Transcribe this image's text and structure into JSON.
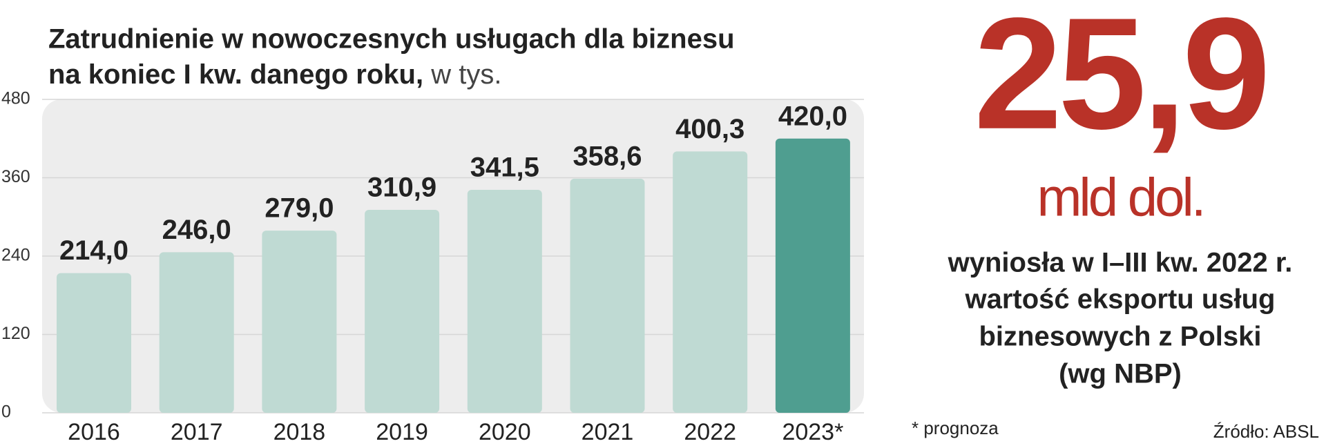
{
  "chart_data": {
    "type": "bar",
    "title": [
      "Zatrudnienie w nowoczesnych usługach dla biznesu",
      "na koniec I kw. danego roku,"
    ],
    "unit": "w tys.",
    "categories": [
      "2016",
      "2017",
      "2018",
      "2019",
      "2020",
      "2021",
      "2022",
      "2023*"
    ],
    "values": [
      214.0,
      246.0,
      279.0,
      310.9,
      341.5,
      358.6,
      400.3,
      420.0
    ],
    "value_labels": [
      "214,0",
      "246,0",
      "279,0",
      "310,9",
      "341,5",
      "358,6",
      "400,3",
      "420,0"
    ],
    "colors": [
      "#bfdad3",
      "#bfdad3",
      "#bfdad3",
      "#bfdad3",
      "#bfdad3",
      "#bfdad3",
      "#bfdad3",
      "#4f9e90"
    ],
    "ylim": [
      0,
      480
    ],
    "yticks": [
      0,
      120,
      240,
      360,
      480
    ],
    "grid": true,
    "footnote": "* prognoza",
    "source": "Źródło: ABSL"
  },
  "highlight": {
    "value": "25,9",
    "unit": "mld dol.",
    "description": [
      "wyniosła w I–III kw. 2022 r.",
      "wartość eksportu usług",
      "biznesowych z Polski",
      "(wg NBP)"
    ]
  }
}
